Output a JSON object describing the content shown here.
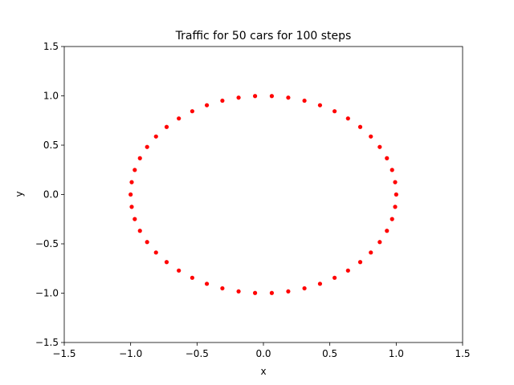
{
  "chart_data": {
    "type": "scatter",
    "title": "Traffic for 50 cars for 100 steps",
    "xlabel": "x",
    "ylabel": "y",
    "xlim": [
      -1.5,
      1.5
    ],
    "ylim": [
      -1.5,
      1.5
    ],
    "xticks": [
      -1.5,
      -1.0,
      -0.5,
      0.0,
      0.5,
      1.0,
      1.5
    ],
    "yticks": [
      -1.5,
      -1.0,
      -0.5,
      0.0,
      0.5,
      1.0,
      1.5
    ],
    "xtick_labels": [
      "−1.5",
      "−1.0",
      "−0.5",
      "0.0",
      "0.5",
      "1.0",
      "1.5"
    ],
    "ytick_labels": [
      "−1.5",
      "−1.0",
      "−0.5",
      "0.0",
      "0.5",
      "1.0",
      "1.5"
    ],
    "grid": false,
    "marker_color": "#ff0000",
    "series": [
      {
        "points": [
          [
            0.063,
            0.998
          ],
          [
            0.187,
            0.982
          ],
          [
            0.309,
            0.951
          ],
          [
            0.426,
            0.905
          ],
          [
            0.536,
            0.844
          ],
          [
            0.637,
            0.771
          ],
          [
            0.729,
            0.685
          ],
          [
            0.809,
            0.588
          ],
          [
            0.876,
            0.482
          ],
          [
            0.93,
            0.368
          ],
          [
            0.969,
            0.249
          ],
          [
            0.992,
            0.125
          ],
          [
            1.0,
            0.0
          ],
          [
            0.992,
            -0.125
          ],
          [
            0.969,
            -0.249
          ],
          [
            0.93,
            -0.368
          ],
          [
            0.876,
            -0.482
          ],
          [
            0.809,
            -0.588
          ],
          [
            0.729,
            -0.685
          ],
          [
            0.637,
            -0.771
          ],
          [
            0.536,
            -0.844
          ],
          [
            0.426,
            -0.905
          ],
          [
            0.309,
            -0.951
          ],
          [
            0.187,
            -0.982
          ],
          [
            0.063,
            -0.998
          ],
          [
            -0.063,
            -0.998
          ],
          [
            -0.187,
            -0.982
          ],
          [
            -0.309,
            -0.951
          ],
          [
            -0.426,
            -0.905
          ],
          [
            -0.536,
            -0.844
          ],
          [
            -0.637,
            -0.771
          ],
          [
            -0.729,
            -0.685
          ],
          [
            -0.809,
            -0.588
          ],
          [
            -0.876,
            -0.482
          ],
          [
            -0.93,
            -0.368
          ],
          [
            -0.969,
            -0.249
          ],
          [
            -0.992,
            -0.125
          ],
          [
            -1.0,
            0.0
          ],
          [
            -0.992,
            0.125
          ],
          [
            -0.969,
            0.249
          ],
          [
            -0.93,
            0.368
          ],
          [
            -0.876,
            0.482
          ],
          [
            -0.809,
            0.588
          ],
          [
            -0.729,
            0.685
          ],
          [
            -0.637,
            0.771
          ],
          [
            -0.536,
            0.844
          ],
          [
            -0.426,
            0.905
          ],
          [
            -0.309,
            0.951
          ],
          [
            -0.187,
            0.982
          ],
          [
            -0.063,
            0.998
          ]
        ]
      }
    ]
  }
}
